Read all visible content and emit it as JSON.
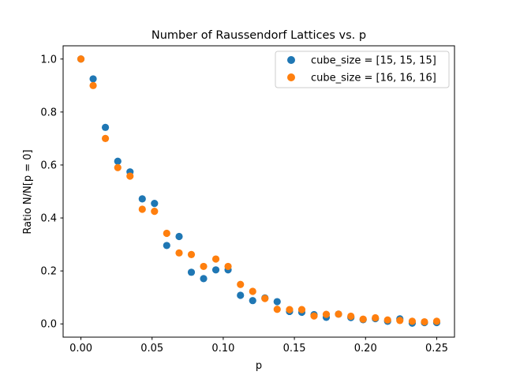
{
  "chart_data": {
    "type": "scatter",
    "title": "Number of Raussendorf Lattices vs. p",
    "xlabel": "p",
    "ylabel": "Ratio N/N[p = 0]",
    "xlim": [
      -0.0125,
      0.2625
    ],
    "ylim": [
      -0.05,
      1.05
    ],
    "xticks": [
      "0.00",
      "0.05",
      "0.10",
      "0.15",
      "0.20",
      "0.25"
    ],
    "yticks": [
      "0.0",
      "0.2",
      "0.4",
      "0.6",
      "0.8",
      "1.0"
    ],
    "grid": false,
    "legend_position": "top-right",
    "x": [
      0.0,
      0.0086,
      0.0172,
      0.0259,
      0.0345,
      0.0431,
      0.0517,
      0.0603,
      0.069,
      0.0776,
      0.0862,
      0.0948,
      0.1034,
      0.1121,
      0.1207,
      0.1293,
      0.1379,
      0.1466,
      0.1552,
      0.1638,
      0.1724,
      0.181,
      0.1897,
      0.1983,
      0.2069,
      0.2155,
      0.2241,
      0.2328,
      0.2414,
      0.25
    ],
    "series": [
      {
        "name": "cube_size = [15, 15, 15]",
        "color": "#1f77b4",
        "values": [
          1.0,
          0.925,
          0.742,
          0.614,
          0.574,
          0.472,
          0.455,
          0.296,
          0.33,
          0.195,
          0.171,
          0.204,
          0.204,
          0.108,
          0.088,
          0.098,
          0.084,
          0.047,
          0.044,
          0.035,
          0.025,
          0.037,
          0.024,
          0.016,
          0.02,
          0.01,
          0.019,
          0.003,
          0.005,
          0.005
        ]
      },
      {
        "name": "cube_size = [16, 16, 16]",
        "color": "#ff7f0e",
        "values": [
          1.0,
          0.9,
          0.7,
          0.59,
          0.558,
          0.433,
          0.425,
          0.342,
          0.268,
          0.262,
          0.217,
          0.245,
          0.217,
          0.149,
          0.123,
          0.096,
          0.055,
          0.054,
          0.054,
          0.03,
          0.036,
          0.037,
          0.029,
          0.018,
          0.023,
          0.015,
          0.013,
          0.01,
          0.008,
          0.01
        ]
      }
    ]
  }
}
